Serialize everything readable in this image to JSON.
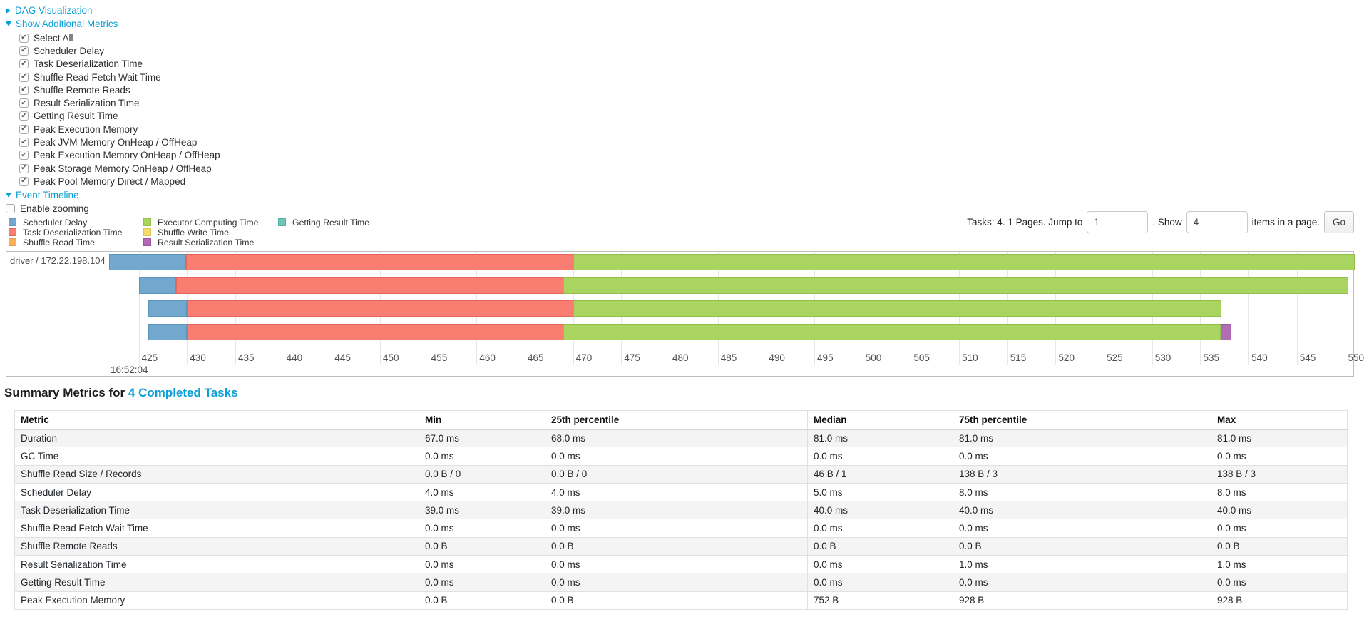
{
  "colors": {
    "link": "#0b9fd8",
    "scheduler_delay": {
      "fill": "#73A8CE",
      "border": "#5D96BD"
    },
    "task_deserialization": {
      "fill": "#F97D70",
      "border": "#E5675B"
    },
    "shuffle_read": {
      "fill": "#FBAD57",
      "border": "#E99C49"
    },
    "executor_computing": {
      "fill": "#A9D45F",
      "border": "#92BE4B"
    },
    "shuffle_write": {
      "fill": "#F3DC6B",
      "border": "#DEC958"
    },
    "result_serialization": {
      "fill": "#B16CB3",
      "border": "#9C569E"
    },
    "getting_result": {
      "fill": "#6EC4B5",
      "border": "#59B0A1"
    }
  },
  "controls": {
    "dag": {
      "label": "DAG Visualization",
      "state": "collapsed"
    },
    "metrics": {
      "label": "Show Additional Metrics",
      "state": "expanded"
    },
    "metric_checkboxes": [
      {
        "label": "Select All",
        "checked": true
      },
      {
        "label": "Scheduler Delay",
        "checked": true
      },
      {
        "label": "Task Deserialization Time",
        "checked": true
      },
      {
        "label": "Shuffle Read Fetch Wait Time",
        "checked": true
      },
      {
        "label": "Shuffle Remote Reads",
        "checked": true
      },
      {
        "label": "Result Serialization Time",
        "checked": true
      },
      {
        "label": "Getting Result Time",
        "checked": true
      },
      {
        "label": "Peak Execution Memory",
        "checked": true
      },
      {
        "label": "Peak JVM Memory OnHeap / OffHeap",
        "checked": true
      },
      {
        "label": "Peak Execution Memory OnHeap / OffHeap",
        "checked": true
      },
      {
        "label": "Peak Storage Memory OnHeap / OffHeap",
        "checked": true
      },
      {
        "label": "Peak Pool Memory Direct / Mapped",
        "checked": true
      }
    ],
    "event_timeline": {
      "label": "Event Timeline",
      "state": "expanded"
    },
    "enable_zooming": {
      "label": "Enable zooming",
      "checked": false
    }
  },
  "pagination": {
    "prefix": "Tasks: 4. 1 Pages. Jump to",
    "jump_value": "1",
    "mid": ". Show",
    "show_value": "4",
    "suffix": "items in a page.",
    "go_label": "Go"
  },
  "chart_data": {
    "type": "timeline",
    "group_label": "driver / 172.22.198.104",
    "x_unit": "milliseconds within second 16:52:04",
    "x_domain": [
      421.85,
      551.0
    ],
    "ticks": [
      425,
      430,
      435,
      440,
      445,
      450,
      455,
      460,
      465,
      470,
      475,
      480,
      485,
      490,
      495,
      500,
      505,
      510,
      515,
      520,
      525,
      530,
      535,
      540,
      545,
      550
    ],
    "major_tick_label": "16:52:04",
    "legend_columns": [
      [
        {
          "label": "Scheduler Delay",
          "key": "scheduler_delay"
        },
        {
          "label": "Task Deserialization Time",
          "key": "task_deserialization"
        },
        {
          "label": "Shuffle Read Time",
          "key": "shuffle_read"
        }
      ],
      [
        {
          "label": "Executor Computing Time",
          "key": "executor_computing"
        },
        {
          "label": "Shuffle Write Time",
          "key": "shuffle_write"
        },
        {
          "label": "Result Serialization Time",
          "key": "result_serialization"
        }
      ],
      [
        {
          "label": "Getting Result Time",
          "key": "getting_result"
        }
      ]
    ],
    "tasks": [
      {
        "segments": [
          {
            "type": "scheduler_delay",
            "start": 421.9,
            "end": 429.9
          },
          {
            "type": "task_deserialization",
            "start": 429.9,
            "end": 470.0
          },
          {
            "type": "executor_computing",
            "start": 470.0,
            "end": 551.0
          }
        ]
      },
      {
        "segments": [
          {
            "type": "scheduler_delay",
            "start": 425.0,
            "end": 428.9
          },
          {
            "type": "task_deserialization",
            "start": 428.9,
            "end": 469.0
          },
          {
            "type": "executor_computing",
            "start": 469.0,
            "end": 550.3
          }
        ]
      },
      {
        "segments": [
          {
            "type": "scheduler_delay",
            "start": 426.0,
            "end": 430.0
          },
          {
            "type": "task_deserialization",
            "start": 430.0,
            "end": 470.0
          },
          {
            "type": "executor_computing",
            "start": 470.0,
            "end": 537.2
          }
        ]
      },
      {
        "segments": [
          {
            "type": "scheduler_delay",
            "start": 426.0,
            "end": 430.0
          },
          {
            "type": "task_deserialization",
            "start": 430.0,
            "end": 469.0
          },
          {
            "type": "executor_computing",
            "start": 469.0,
            "end": 537.1
          },
          {
            "type": "result_serialization",
            "start": 537.1,
            "end": 538.2
          }
        ]
      }
    ]
  },
  "summary": {
    "title_prefix": "Summary Metrics for",
    "title_link": "4 Completed Tasks",
    "table": {
      "columns": [
        "Metric",
        "Min",
        "25th percentile",
        "Median",
        "75th percentile",
        "Max"
      ],
      "rows": [
        {
          "metric": "Duration",
          "values": [
            "67.0 ms",
            "68.0 ms",
            "81.0 ms",
            "81.0 ms",
            "81.0 ms"
          ]
        },
        {
          "metric": "GC Time",
          "values": [
            "0.0 ms",
            "0.0 ms",
            "0.0 ms",
            "0.0 ms",
            "0.0 ms"
          ]
        },
        {
          "metric": "Shuffle Read Size / Records",
          "values": [
            "0.0 B / 0",
            "0.0 B / 0",
            "46 B / 1",
            "138 B / 3",
            "138 B / 3"
          ]
        },
        {
          "metric": "Scheduler Delay",
          "values": [
            "4.0 ms",
            "4.0 ms",
            "5.0 ms",
            "8.0 ms",
            "8.0 ms"
          ]
        },
        {
          "metric": "Task Deserialization Time",
          "values": [
            "39.0 ms",
            "39.0 ms",
            "40.0 ms",
            "40.0 ms",
            "40.0 ms"
          ]
        },
        {
          "metric": "Shuffle Read Fetch Wait Time",
          "values": [
            "0.0 ms",
            "0.0 ms",
            "0.0 ms",
            "0.0 ms",
            "0.0 ms"
          ]
        },
        {
          "metric": "Shuffle Remote Reads",
          "values": [
            "0.0 B",
            "0.0 B",
            "0.0 B",
            "0.0 B",
            "0.0 B"
          ]
        },
        {
          "metric": "Result Serialization Time",
          "values": [
            "0.0 ms",
            "0.0 ms",
            "0.0 ms",
            "1.0 ms",
            "1.0 ms"
          ]
        },
        {
          "metric": "Getting Result Time",
          "values": [
            "0.0 ms",
            "0.0 ms",
            "0.0 ms",
            "0.0 ms",
            "0.0 ms"
          ]
        },
        {
          "metric": "Peak Execution Memory",
          "values": [
            "0.0 B",
            "0.0 B",
            "752 B",
            "928 B",
            "928 B"
          ]
        }
      ]
    }
  }
}
